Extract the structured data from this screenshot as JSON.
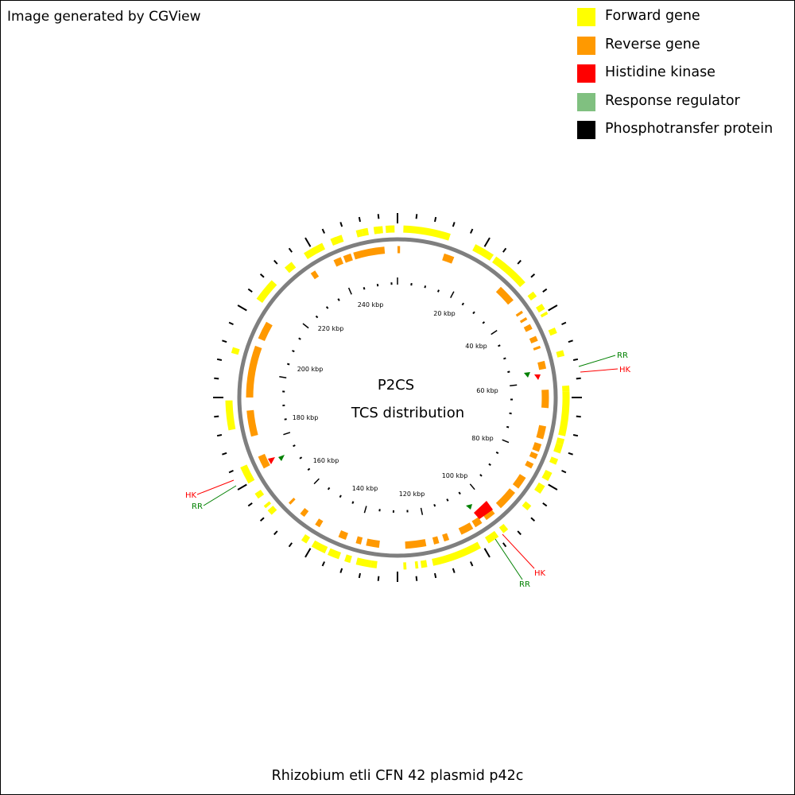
{
  "credit": "Image generated by CGView",
  "legend": [
    {
      "label": "Forward gene",
      "color": "#ffff00",
      "icon": "yellow-square"
    },
    {
      "label": "Reverse gene",
      "color": "#ff9900",
      "icon": "orange-square"
    },
    {
      "label": "Histidine kinase",
      "color": "#ff0000",
      "icon": "red-square"
    },
    {
      "label": "Response regulator",
      "color": "#80c080",
      "icon": "green-square"
    },
    {
      "label": "Phosphotransfer protein",
      "color": "#000000",
      "icon": "black-square"
    }
  ],
  "map": {
    "title_line1": "P2CS",
    "title_line2": "TCS distribution",
    "backbone_color": "#808080",
    "scale_labels": [
      "20 kbp",
      "40 kbp",
      "60 kbp",
      "80 kbp",
      "100 kbp",
      "120 kbp",
      "140 kbp",
      "160 kbp",
      "180 kbp",
      "200 kbp",
      "220 kbp",
      "240 kbp"
    ],
    "annotations": [
      {
        "label": "RR",
        "color": "#008000"
      },
      {
        "label": "HK",
        "color": "#ff0000"
      },
      {
        "label": "HK",
        "color": "#ff0000"
      },
      {
        "label": "RR",
        "color": "#008000"
      },
      {
        "label": "HK",
        "color": "#ff0000"
      },
      {
        "label": "RR",
        "color": "#008000"
      }
    ]
  },
  "organism": "Rhizobium etli CFN 42 plasmid p42c"
}
